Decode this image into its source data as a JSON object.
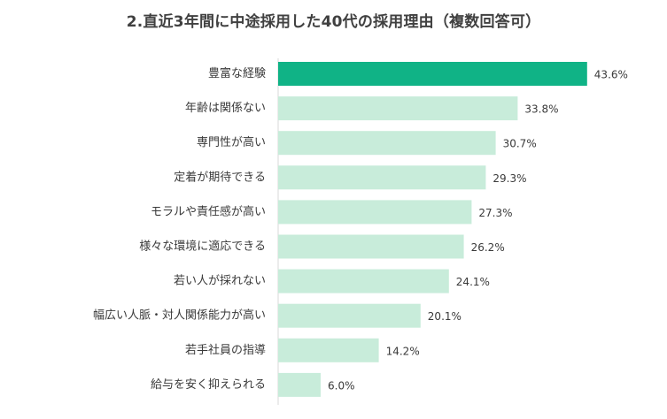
{
  "chart_data": {
    "type": "bar",
    "orientation": "horizontal",
    "title": "2.直近3年間に中途採用した40代の採用理由（複数回答可）",
    "categories": [
      "豊富な経験",
      "年齢は関係ない",
      "専門性が高い",
      "定着が期待できる",
      "モラルや責任感が高い",
      "様々な環境に適応できる",
      "若い人が採れない",
      "幅広い人脈・対人関係能力が高い",
      "若手社員の指導",
      "給与を安く抑えられる"
    ],
    "values": [
      43.6,
      33.8,
      30.7,
      29.3,
      27.3,
      26.2,
      24.1,
      20.1,
      14.2,
      6.0
    ],
    "value_labels": [
      "43.6%",
      "33.8%",
      "30.7%",
      "29.3%",
      "27.3%",
      "26.2%",
      "24.1%",
      "20.1%",
      "14.2%",
      "6.0%"
    ],
    "unit": "%",
    "xlim": [
      0,
      45
    ],
    "grid": false,
    "legend": "none",
    "highlight_index": 0,
    "colors": {
      "highlight": "#10B386",
      "bar": "#C8ECDA",
      "axis": "#D9D9D9",
      "text": "#3A3A3A",
      "title": "#404040"
    }
  }
}
